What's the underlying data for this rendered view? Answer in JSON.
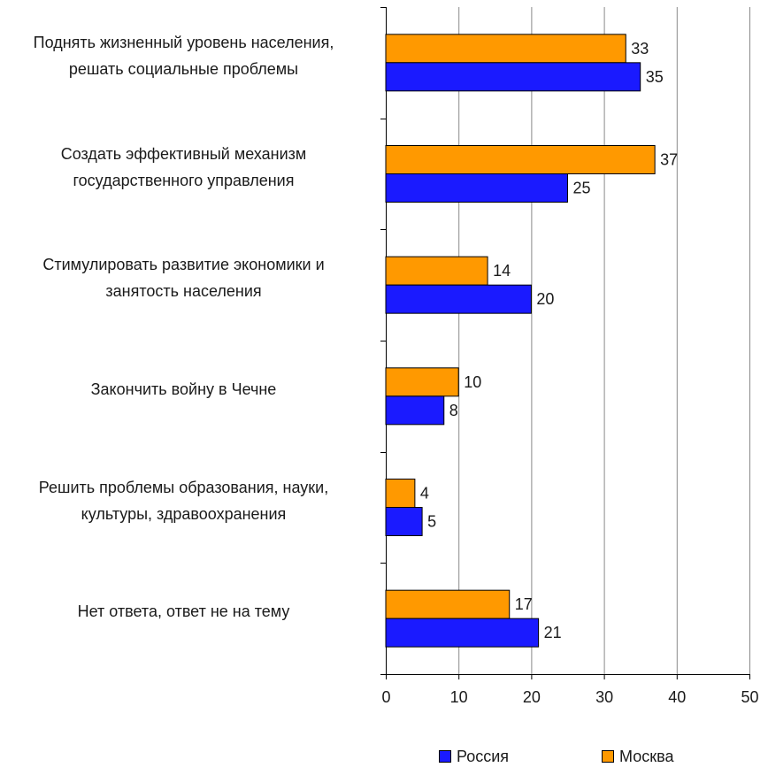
{
  "chart_data": {
    "type": "bar",
    "orientation": "horizontal",
    "categories": [
      [
        "Поднять жизненный уровень населения,",
        "решать социальные проблемы"
      ],
      [
        "Создать эффективный механизм",
        "государственного управления"
      ],
      [
        "Стимулировать развитие экономики и",
        "занятость населения"
      ],
      [
        "Закончить войну в Чечне"
      ],
      [
        "Решить проблемы образования, науки,",
        "культуры, здравоохранения"
      ],
      [
        "Нет ответа, ответ не на тему"
      ]
    ],
    "series": [
      {
        "name": "Москва",
        "color": "#ff9900",
        "values": [
          33,
          37,
          14,
          10,
          4,
          17
        ]
      },
      {
        "name": "Россия",
        "color": "#1a1aff",
        "values": [
          35,
          25,
          20,
          8,
          5,
          21
        ]
      }
    ],
    "xlim": [
      0,
      50
    ],
    "xticks": [
      0,
      10,
      20,
      30,
      40,
      50
    ],
    "grid": true,
    "legend_position": "bottom",
    "legend_order": [
      "Россия",
      "Москва"
    ]
  }
}
